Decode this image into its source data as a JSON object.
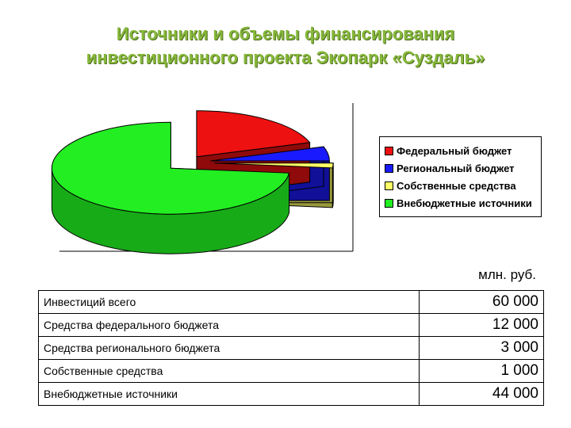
{
  "title_line1": "Источники и объемы финансирования",
  "title_line2": "инвестиционного проекта Экопарк «Суздаль»",
  "unit": "млн. руб.",
  "chart_data": {
    "type": "pie",
    "style": "3d-exploded",
    "slices": [
      {
        "name": "Федеральный бюджет",
        "value": 12000,
        "color": "#ee1111"
      },
      {
        "name": "Региональный бюджет",
        "value": 3000,
        "color": "#1a1aff"
      },
      {
        "name": "Собственные средства",
        "value": 1000,
        "color": "#ffff66"
      },
      {
        "name": "Внебюджетные источники",
        "value": 44000,
        "color": "#22ee22"
      }
    ],
    "legend_position": "right"
  },
  "table": [
    {
      "label": "Инвестиций всего",
      "value": "60 000"
    },
    {
      "label": "Средства федерального бюджета",
      "value": "12 000"
    },
    {
      "label": "Средства регионального бюджета",
      "value": "3 000"
    },
    {
      "label": "Собственные средства",
      "value": "1 000"
    },
    {
      "label": "Внебюджетные источники",
      "value": "44 000"
    }
  ]
}
